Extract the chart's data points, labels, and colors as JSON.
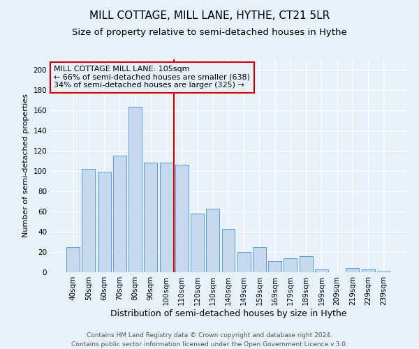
{
  "title": "MILL COTTAGE, MILL LANE, HYTHE, CT21 5LR",
  "subtitle": "Size of property relative to semi-detached houses in Hythe",
  "xlabel": "Distribution of semi-detached houses by size in Hythe",
  "ylabel": "Number of semi-detached properties",
  "footer_line1": "Contains HM Land Registry data © Crown copyright and database right 2024.",
  "footer_line2": "Contains public sector information licensed under the Open Government Licence v.3.0.",
  "bar_labels": [
    "40sqm",
    "50sqm",
    "60sqm",
    "70sqm",
    "80sqm",
    "90sqm",
    "100sqm",
    "110sqm",
    "120sqm",
    "130sqm",
    "140sqm",
    "149sqm",
    "159sqm",
    "169sqm",
    "179sqm",
    "189sqm",
    "199sqm",
    "209sqm",
    "219sqm",
    "229sqm",
    "239sqm"
  ],
  "bar_values": [
    25,
    102,
    99,
    115,
    163,
    108,
    108,
    106,
    58,
    63,
    43,
    20,
    25,
    11,
    14,
    16,
    3,
    0,
    4,
    3,
    1
  ],
  "bar_color": "#c5d8ed",
  "bar_edge_color": "#5b9bd5",
  "reference_line_color": "#cc0000",
  "annotation_title": "MILL COTTAGE MILL LANE: 105sqm",
  "annotation_line1": "← 66% of semi-detached houses are smaller (638)",
  "annotation_line2": "34% of semi-detached houses are larger (325) →",
  "annotation_box_edge_color": "#cc0000",
  "ylim": [
    0,
    210
  ],
  "yticks": [
    0,
    20,
    40,
    60,
    80,
    100,
    120,
    140,
    160,
    180,
    200
  ],
  "background_color": "#e8f0f8",
  "plot_bg_color": "#e8f0f8",
  "grid_color": "#ffffff",
  "title_fontsize": 11,
  "subtitle_fontsize": 9.5,
  "xlabel_fontsize": 9,
  "ylabel_fontsize": 8,
  "tick_fontsize": 7.5,
  "annotation_fontsize": 8,
  "footer_fontsize": 6.5
}
